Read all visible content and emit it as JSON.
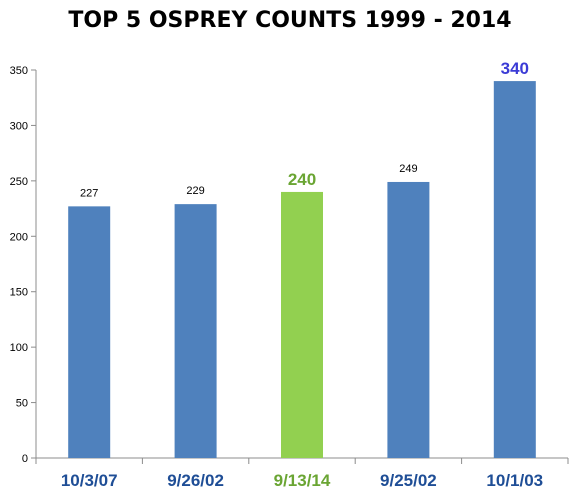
{
  "chart_data": {
    "type": "bar",
    "title": "TOP 5 OSPREY COUNTS 1999 - 2014",
    "xlabel": "",
    "ylabel": "",
    "categories": [
      "10/3/07",
      "9/26/02",
      "9/13/14",
      "9/25/02",
      "10/1/03"
    ],
    "values": [
      227,
      229,
      240,
      249,
      340
    ],
    "data_labels": [
      "227",
      "229",
      "240",
      "249",
      "340"
    ],
    "ylim": [
      0,
      350
    ],
    "yticks": [
      0,
      50,
      100,
      150,
      200,
      250,
      300,
      350
    ],
    "grid": false,
    "legend": "none",
    "bar_colors": [
      "#4f81bd",
      "#4f81bd",
      "#92d050",
      "#4f81bd",
      "#4f81bd"
    ],
    "category_label_colors": [
      "#1f4e96",
      "#1f4e96",
      "#6aa533",
      "#1f4e96",
      "#1f4e96"
    ],
    "data_label_colors": [
      "#000000",
      "#000000",
      "#6aa533",
      "#000000",
      "#3b3bd6"
    ],
    "highlight_labels": [
      false,
      false,
      true,
      false,
      true
    ]
  }
}
